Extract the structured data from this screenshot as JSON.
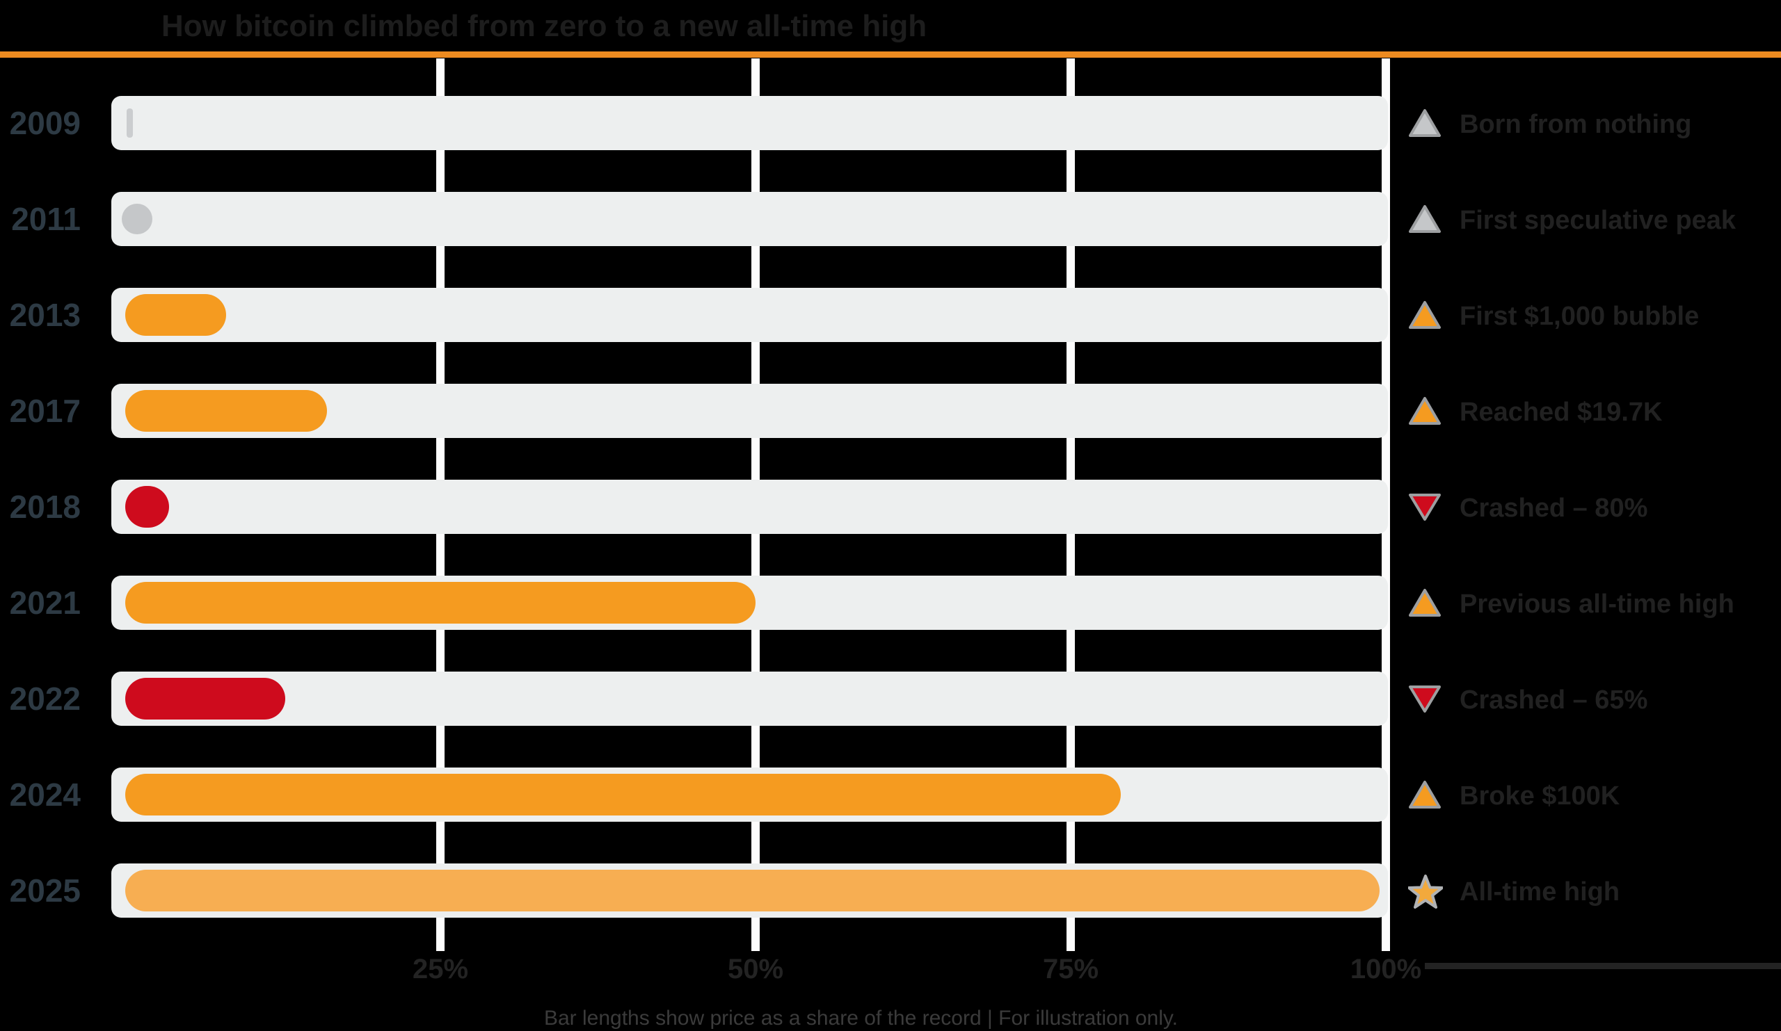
{
  "title": "How bitcoin climbed from zero to a new all-time high",
  "footnote": "Bar lengths show price as a share of the record | For illustration only.",
  "colors": {
    "background": "#000000",
    "accent_divider": "#ed8b20",
    "track": "#edefef",
    "gridline": "#fcfcfc",
    "orange": "#f59b20",
    "light_orange": "#f7ae52",
    "red": "#ce0b1d",
    "gray": "#c5c7c9",
    "gray_tick": "#cbcdcf",
    "year_label": "#2d3a44",
    "legend_text": "#212121",
    "icon_outline": "#9d9fa1",
    "star_fill": "#f2a93c",
    "star_outline": "#b0b2b4"
  },
  "x_axis": {
    "tick_labels": [
      "25%",
      "50%",
      "75%",
      "100%"
    ],
    "tick_values": [
      25,
      50,
      75,
      100
    ]
  },
  "rows": [
    {
      "year": "2009",
      "value": 0.5,
      "shape": "tick",
      "color_key": "gray_tick",
      "icon": "triangle-up-gray",
      "label": "Born from nothing"
    },
    {
      "year": "2011",
      "value": 1,
      "shape": "dot",
      "color_key": "gray",
      "icon": "triangle-up-gray",
      "label": "First speculative peak"
    },
    {
      "year": "2013",
      "value": 8,
      "shape": "pill",
      "color_key": "orange",
      "icon": "triangle-up-orange",
      "label": "First $1,000 bubble"
    },
    {
      "year": "2017",
      "value": 16,
      "shape": "pill",
      "color_key": "orange",
      "icon": "triangle-up-orange",
      "label": "Reached $19.7K"
    },
    {
      "year": "2018",
      "value": 3.5,
      "shape": "pill",
      "color_key": "red",
      "icon": "triangle-down-red",
      "label": "Crashed – 80%"
    },
    {
      "year": "2021",
      "value": 50,
      "shape": "pill",
      "color_key": "orange",
      "icon": "triangle-up-orange",
      "label": "Previous all-time high"
    },
    {
      "year": "2022",
      "value": 12.7,
      "shape": "pill",
      "color_key": "red",
      "icon": "triangle-down-red",
      "label": "Crashed – 65%"
    },
    {
      "year": "2024",
      "value": 79,
      "shape": "pill",
      "color_key": "orange",
      "icon": "triangle-up-orange",
      "label": "Broke $100K"
    },
    {
      "year": "2025",
      "value": 99.5,
      "shape": "pill",
      "color_key": "light_orange",
      "icon": "star",
      "label": "All-time high"
    }
  ],
  "chart_data": {
    "type": "bar",
    "orientation": "horizontal",
    "title": "How bitcoin climbed from zero to a new all-time high",
    "categories": [
      "2009",
      "2011",
      "2013",
      "2017",
      "2018",
      "2021",
      "2022",
      "2024",
      "2025"
    ],
    "values": [
      0.5,
      1,
      8,
      16,
      3.5,
      50,
      12.7,
      79,
      99.5
    ],
    "value_unit": "percent of all-time high",
    "xlim": [
      0,
      100
    ],
    "x_tick_labels": [
      "25%",
      "50%",
      "75%",
      "100%"
    ],
    "grid": "vertical gridlines at ticks",
    "bar_color_by_year": {
      "2009": "gray",
      "2011": "gray",
      "2013": "orange",
      "2017": "orange",
      "2018": "red",
      "2021": "orange",
      "2022": "red",
      "2024": "orange",
      "2025": "light_orange"
    },
    "annotations_right": [
      "Born from nothing",
      "First speculative peak",
      "First $1,000 bubble",
      "Reached $19.7K",
      "Crashed – 80%",
      "Previous all-time high",
      "Crashed – 65%",
      "Broke $100K",
      "All-time high"
    ],
    "legend_position": "right of each bar"
  }
}
